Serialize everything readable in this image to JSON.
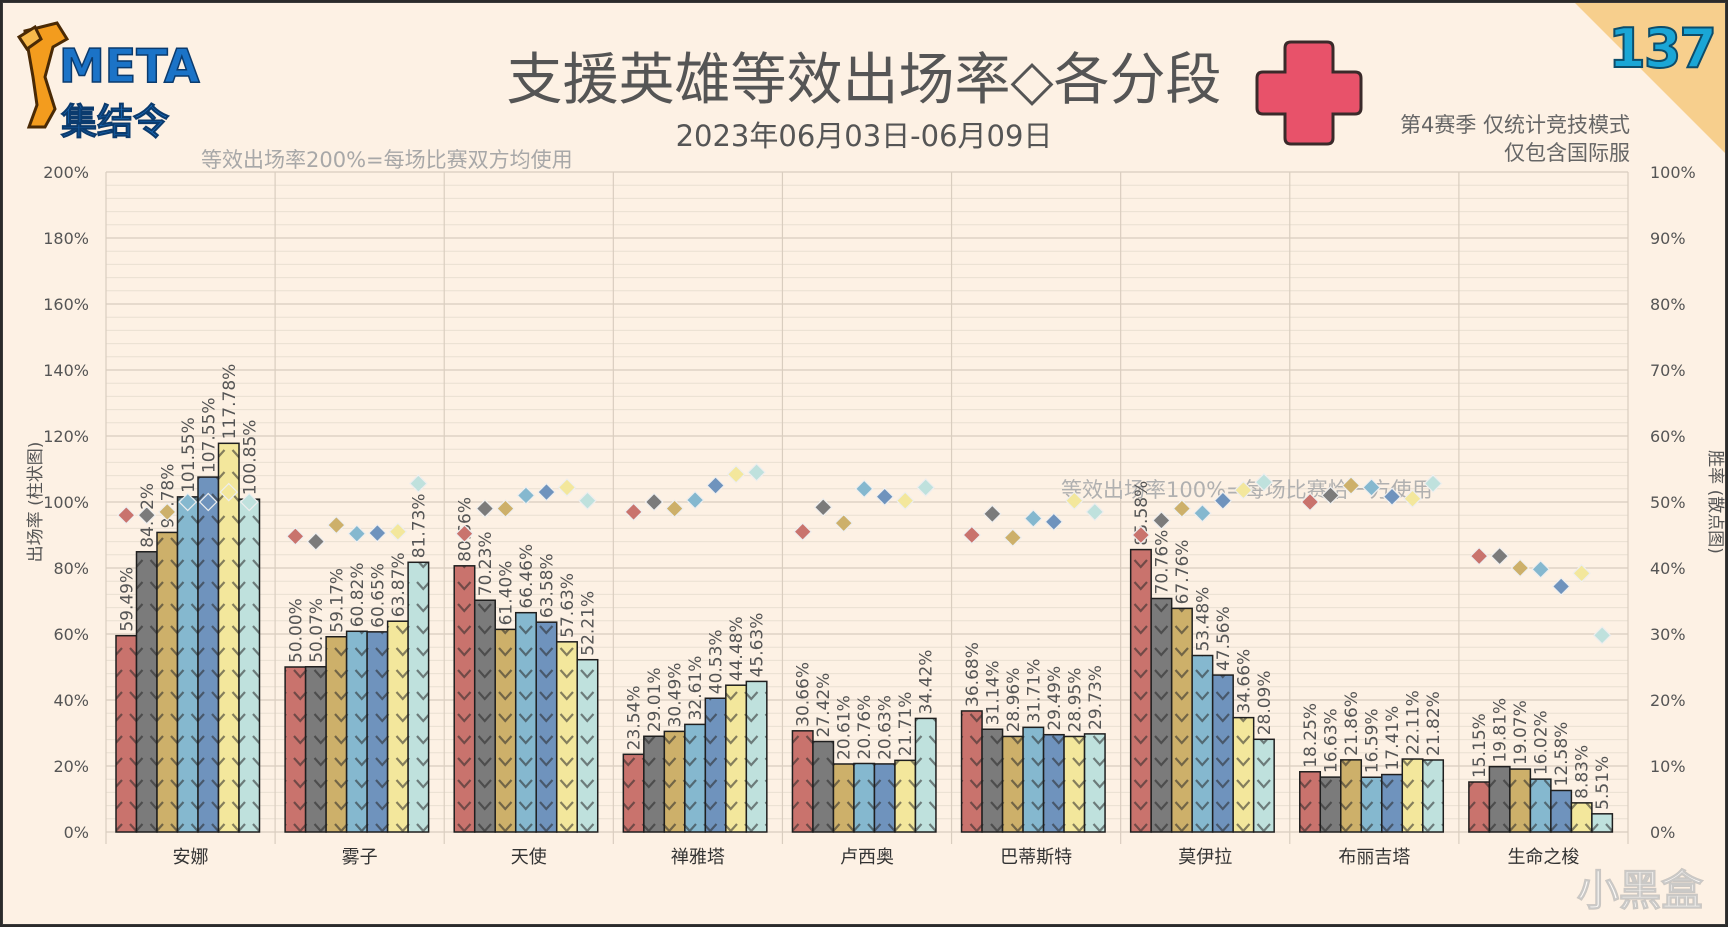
{
  "header": {
    "title": "支援英雄等效出场率◇各分段",
    "date_range": "2023年06月03日-06月09日",
    "note_season": "第4赛季 仅统计竞技模式",
    "note_server": "仅包含国际服",
    "note_200": "等效出场率200%=每场比赛双方均使用",
    "issue_number": "137",
    "logo_meta": "META",
    "logo_sub": "集结令",
    "watermark": "小黑盒"
  },
  "colors": {
    "background": "#fdf1e4",
    "tiers": [
      "#c9736d",
      "#7b7b7b",
      "#cdb06a",
      "#85b8cf",
      "#6f93bd",
      "#f3e79c",
      "#bfe1dd"
    ],
    "cross": "#e8526a"
  },
  "chart_data": {
    "type": "bar",
    "categories": [
      "安娜",
      "雾子",
      "天使",
      "禅雅塔",
      "卢西奥",
      "巴蒂斯特",
      "莫伊拉",
      "布丽吉塔",
      "生命之梭"
    ],
    "ylabel_left": "出场率 (柱状图)",
    "ylabel_right": "胜率 (散点图)",
    "ylim_left": [
      0,
      200
    ],
    "ylim_right": [
      0,
      100
    ],
    "left_ticks": [
      "0%",
      "20%",
      "40%",
      "60%",
      "80%",
      "100%",
      "120%",
      "140%",
      "160%",
      "180%",
      "200%"
    ],
    "right_ticks": [
      "0%",
      "10%",
      "20%",
      "30%",
      "40%",
      "50%",
      "60%",
      "70%",
      "80%",
      "90%",
      "100%"
    ],
    "annotation_100": "等效出场率100%=每场比赛恰一方使用",
    "bar_values": [
      [
        59.49,
        84.92,
        90.78,
        101.55,
        107.55,
        117.78,
        100.85
      ],
      [
        50.0,
        50.07,
        59.17,
        60.82,
        60.65,
        63.87,
        81.73
      ],
      [
        80.66,
        70.23,
        61.4,
        66.46,
        63.58,
        57.63,
        52.21
      ],
      [
        23.54,
        29.01,
        30.49,
        32.61,
        40.53,
        44.48,
        45.63
      ],
      [
        30.66,
        27.42,
        20.61,
        20.76,
        20.63,
        21.71,
        34.42
      ],
      [
        36.68,
        31.14,
        28.96,
        31.71,
        29.49,
        28.95,
        29.73
      ],
      [
        85.58,
        70.76,
        67.76,
        53.48,
        47.56,
        34.66,
        28.09
      ],
      [
        18.25,
        16.63,
        21.86,
        16.59,
        17.41,
        22.11,
        21.82
      ],
      [
        15.15,
        19.81,
        19.07,
        16.02,
        12.58,
        8.83,
        5.51
      ]
    ],
    "bar_labels": [
      [
        "59.49%",
        "84.92%",
        "90.78%",
        "101.55%",
        "107.55%",
        "117.78%",
        "100.85%"
      ],
      [
        "50.00%",
        "50.07%",
        "59.17%",
        "60.82%",
        "60.65%",
        "63.87%",
        "81.73%"
      ],
      [
        "80.66%",
        "70.23%",
        "61.40%",
        "66.46%",
        "63.58%",
        "57.63%",
        "52.21%"
      ],
      [
        "23.54%",
        "29.01%",
        "30.49%",
        "32.61%",
        "40.53%",
        "44.48%",
        "45.63%"
      ],
      [
        "30.66%",
        "27.42%",
        "20.61%",
        "20.76%",
        "20.63%",
        "21.71%",
        "34.42%"
      ],
      [
        "36.68%",
        "31.14%",
        "28.96%",
        "31.71%",
        "29.49%",
        "28.95%",
        "29.73%"
      ],
      [
        "85.58%",
        "70.76%",
        "67.76%",
        "53.48%",
        "47.56%",
        "34.66%",
        "28.09%"
      ],
      [
        "18.25%",
        "16.63%",
        "21.86%",
        "16.59%",
        "17.41%",
        "22.11%",
        "21.82%"
      ],
      [
        "15.15%",
        "19.81%",
        "19.07%",
        "16.02%",
        "12.58%",
        "8.83%",
        "5.51%"
      ]
    ],
    "win_rates": [
      [
        48.0,
        48.0,
        48.5,
        50.0,
        50.0,
        51.5,
        50.0
      ],
      [
        44.8,
        44.0,
        46.5,
        45.2,
        45.3,
        45.5,
        52.8
      ],
      [
        45.2,
        49.0,
        49.0,
        51.0,
        51.5,
        52.2,
        50.2
      ],
      [
        48.5,
        50.0,
        49.0,
        50.3,
        52.5,
        54.2,
        54.5
      ],
      [
        45.5,
        49.2,
        46.8,
        52.0,
        50.8,
        50.2,
        52.2
      ],
      [
        45.0,
        48.2,
        44.6,
        47.5,
        47.0,
        50.2,
        48.5
      ],
      [
        45.0,
        47.2,
        49.0,
        48.3,
        50.2,
        51.8,
        53.0
      ],
      [
        50.0,
        51.0,
        52.5,
        52.2,
        50.8,
        50.5,
        52.8
      ],
      [
        41.8,
        41.8,
        40.0,
        39.8,
        37.2,
        39.2,
        29.8
      ]
    ]
  }
}
